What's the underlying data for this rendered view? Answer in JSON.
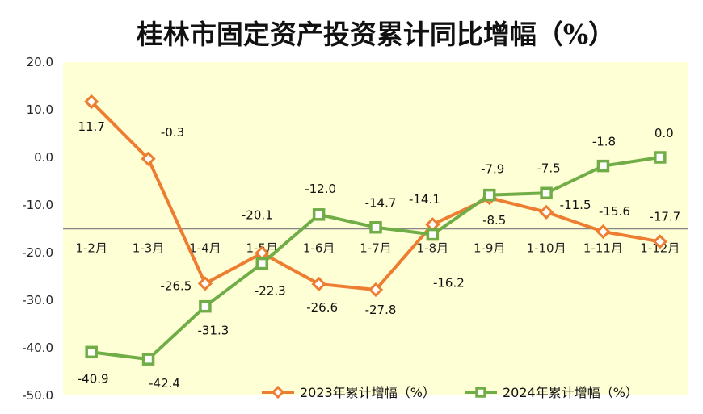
{
  "chart_data": {
    "type": "line",
    "title": "桂林市固定资产投资累计同比增幅（%）",
    "xlabel": "",
    "ylabel": "",
    "ylim": [
      -50,
      20
    ],
    "y_ticks": [
      "20.0",
      "10.0",
      "0.0",
      "-10.0",
      "-20.0",
      "-30.0",
      "-40.0",
      "-50.0"
    ],
    "y_tick_values": [
      20,
      10,
      0,
      -10,
      -20,
      -30,
      -40,
      -50
    ],
    "x_axis_crosses_at": -15,
    "grid": false,
    "legend_position": "bottom-right",
    "categories": [
      "1-2月",
      "1-3月",
      "1-4月",
      "1-5月",
      "1-6月",
      "1-7月",
      "1-8月",
      "1-9月",
      "1-10月",
      "1-11月",
      "1-12月"
    ],
    "series": [
      {
        "name": "2023年累计增幅（%）",
        "color": "#ED7D31",
        "marker": "diamond",
        "values": [
          11.7,
          -0.3,
          -26.5,
          -20.1,
          -26.6,
          -27.8,
          -14.1,
          -8.5,
          -11.5,
          -15.6,
          -17.7
        ],
        "labels": [
          "11.7",
          "-0.3",
          "-26.5",
          "-20.1",
          "-26.6",
          "-27.8",
          "-14.1",
          "-8.5",
          "-11.5",
          "-15.6",
          "-17.7"
        ]
      },
      {
        "name": "2024年累计增幅（%）",
        "color": "#70AD47",
        "marker": "square",
        "values": [
          -40.9,
          -42.4,
          -31.3,
          -22.3,
          -12.0,
          -14.7,
          -16.2,
          -7.9,
          -7.5,
          -1.8,
          0.0
        ],
        "labels": [
          "-40.9",
          "-42.4",
          "-31.3",
          "-22.3",
          "-12.0",
          "-14.7",
          "-16.2",
          "-7.9",
          "-7.5",
          "-1.8",
          "0.0"
        ]
      }
    ],
    "plot_background": "#FFFFD5"
  }
}
